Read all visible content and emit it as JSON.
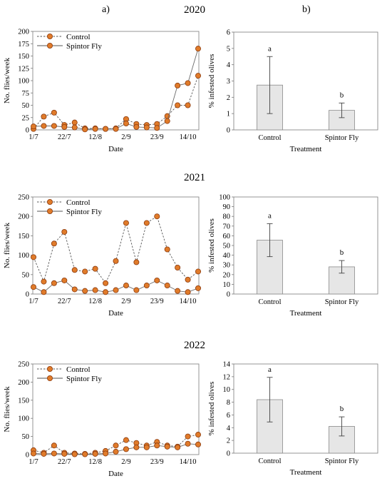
{
  "figure": {
    "panel_a_label": "a)",
    "panel_b_label": "b)",
    "years": [
      "2020",
      "2021",
      "2022"
    ]
  },
  "colors": {
    "marker_fill": "#E07B2A",
    "marker_edge": "#8B3A0E",
    "bar_fill": "#E6E6E6"
  },
  "chart_data": [
    {
      "id": "flies-2020",
      "type": "line",
      "year": "2020",
      "xlabel": "Date",
      "ylabel": "No. flies/week",
      "x_tick_labels": [
        "1/7",
        "22/7",
        "12/8",
        "2/9",
        "23/9",
        "14/10"
      ],
      "ylim": [
        0,
        200
      ],
      "yticks": [
        0,
        25,
        50,
        75,
        100,
        125,
        150,
        175,
        200
      ],
      "legend": "top-left",
      "series": [
        {
          "name": "Control",
          "style": "dashed",
          "values": [
            2,
            27,
            35,
            10,
            15,
            3,
            3,
            2,
            3,
            22,
            12,
            10,
            12,
            28,
            50,
            50,
            110
          ]
        },
        {
          "name": "Spintor Fly",
          "style": "solid",
          "values": [
            7,
            8,
            8,
            6,
            5,
            1,
            2,
            2,
            2,
            13,
            6,
            5,
            4,
            18,
            90,
            95,
            165
          ]
        }
      ]
    },
    {
      "id": "infested-2020",
      "type": "bar",
      "year": "2020",
      "xlabel": "Treatment",
      "ylabel": "% infested olives",
      "categories": [
        "Control",
        "Spintor Fly"
      ],
      "values": [
        2.75,
        1.2
      ],
      "errors": [
        1.75,
        0.45
      ],
      "letters": [
        "a",
        "b"
      ],
      "ylim": [
        0,
        6
      ],
      "yticks": [
        0,
        1,
        2,
        3,
        4,
        5,
        6
      ]
    },
    {
      "id": "flies-2021",
      "type": "line",
      "year": "2021",
      "xlabel": "Date",
      "ylabel": "No. flies/week",
      "x_tick_labels": [
        "1/7",
        "22/7",
        "12/8",
        "2/9",
        "23/9",
        "14/10"
      ],
      "ylim": [
        0,
        250
      ],
      "yticks": [
        0,
        50,
        100,
        150,
        200,
        250
      ],
      "legend": "top-left",
      "series": [
        {
          "name": "Control",
          "style": "dashed",
          "values": [
            95,
            32,
            130,
            160,
            62,
            58,
            65,
            28,
            85,
            183,
            82,
            183,
            200,
            115,
            68,
            37,
            58
          ]
        },
        {
          "name": "Spintor Fly",
          "style": "solid",
          "values": [
            18,
            5,
            28,
            35,
            12,
            8,
            10,
            5,
            10,
            22,
            10,
            22,
            35,
            22,
            8,
            5,
            15
          ]
        }
      ]
    },
    {
      "id": "infested-2021",
      "type": "bar",
      "year": "2021",
      "xlabel": "Treatment",
      "ylabel": "% infested olives",
      "categories": [
        "Control",
        "Spintor Fly"
      ],
      "values": [
        55.5,
        28
      ],
      "errors": [
        17,
        6.5
      ],
      "letters": [
        "a",
        "b"
      ],
      "ylim": [
        0,
        100
      ],
      "yticks": [
        0,
        10,
        20,
        30,
        40,
        50,
        60,
        70,
        80,
        90,
        100
      ]
    },
    {
      "id": "flies-2022",
      "type": "line",
      "year": "2022",
      "xlabel": "Date",
      "ylabel": "No. flies/week",
      "x_tick_labels": [
        "1/7",
        "22/7",
        "12/8",
        "2/9",
        "23/9",
        "14/10"
      ],
      "ylim": [
        0,
        250
      ],
      "yticks": [
        0,
        50,
        100,
        150,
        200,
        250
      ],
      "legend": "top-left",
      "series": [
        {
          "name": "Control",
          "style": "dashed",
          "values": [
            12,
            5,
            25,
            5,
            3,
            2,
            5,
            10,
            25,
            40,
            32,
            25,
            35,
            25,
            22,
            50,
            55
          ]
        },
        {
          "name": "Spintor Fly",
          "style": "solid",
          "values": [
            3,
            2,
            3,
            2,
            1,
            1,
            2,
            3,
            8,
            15,
            20,
            20,
            25,
            22,
            20,
            30,
            28
          ]
        }
      ]
    },
    {
      "id": "infested-2022",
      "type": "bar",
      "year": "2022",
      "xlabel": "Treatment",
      "ylabel": "% infested olives",
      "categories": [
        "Control",
        "Spintor Fly"
      ],
      "values": [
        8.4,
        4.2
      ],
      "errors": [
        3.5,
        1.5
      ],
      "letters": [
        "a",
        "b"
      ],
      "ylim": [
        0,
        14
      ],
      "yticks": [
        0,
        2,
        4,
        6,
        8,
        10,
        12,
        14
      ]
    }
  ]
}
